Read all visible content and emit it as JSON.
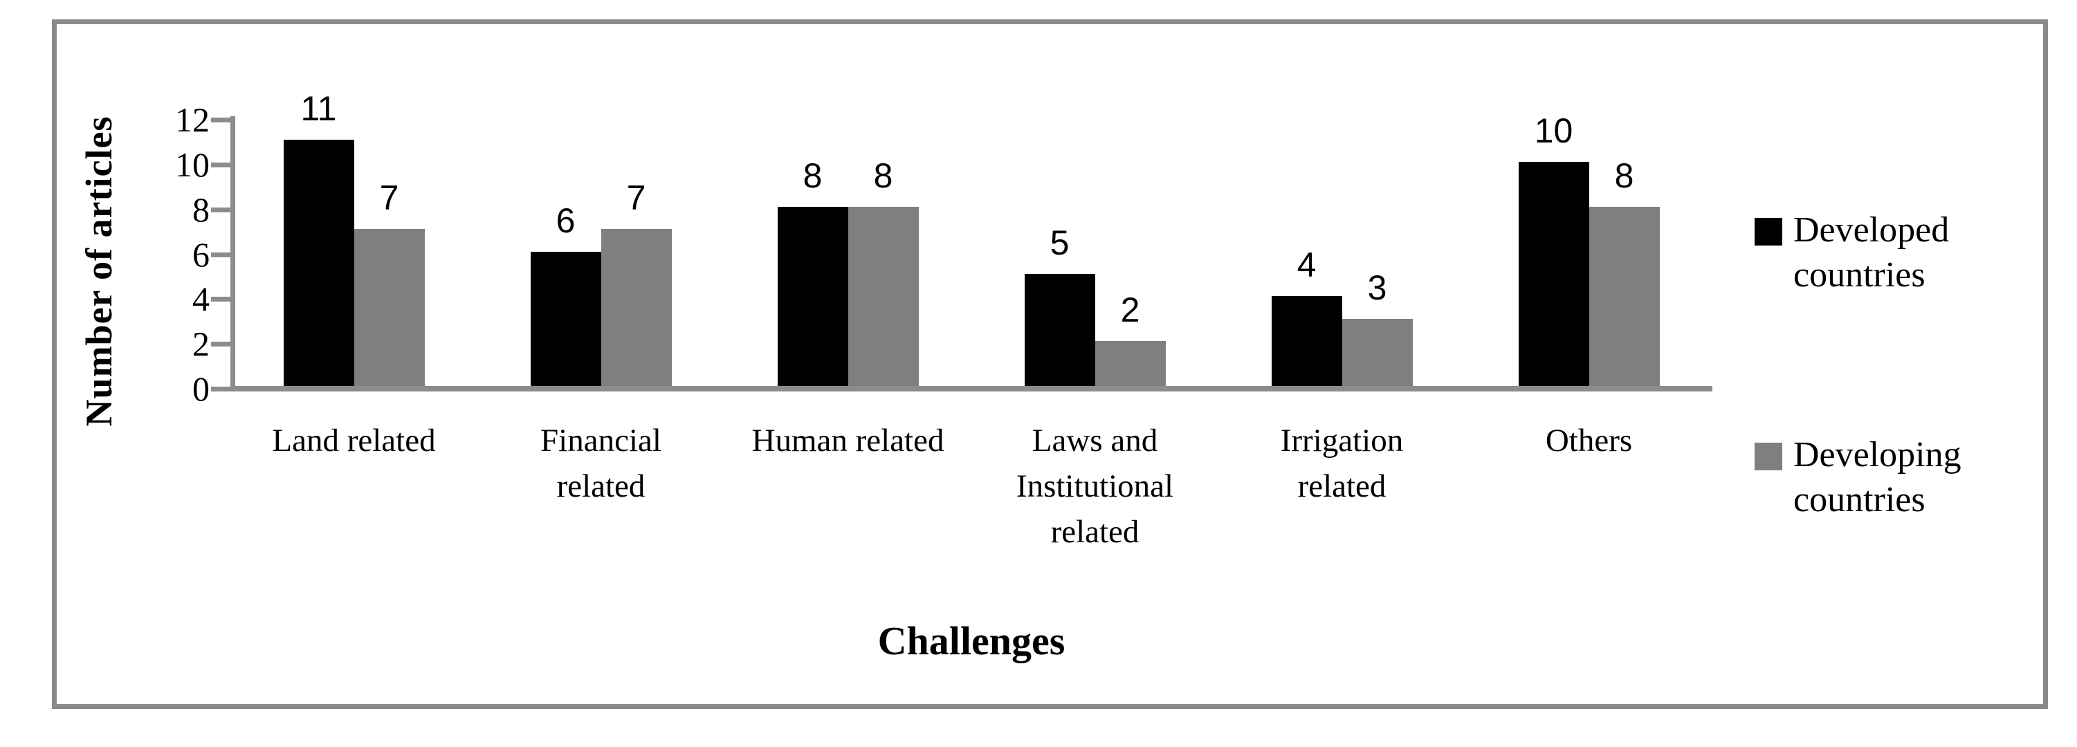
{
  "figure": {
    "description": "Grouped bar chart comparing number of articles on challenges in developed vs developing countries"
  },
  "axes": {
    "x_title": "Challenges",
    "y_title": "Number of articles"
  },
  "chart_data": {
    "type": "bar",
    "title": "",
    "xlabel": "Challenges",
    "ylabel": "Number of articles",
    "categories": [
      "Land related",
      "Financial\nrelated",
      "Human related",
      "Laws and\nInstitutional\nrelated",
      "Irrigation\nrelated",
      "Others"
    ],
    "series": [
      {
        "name": "Developed countries",
        "color": "#000000",
        "values": [
          11,
          6,
          8,
          5,
          4,
          10
        ]
      },
      {
        "name": "Developing countries",
        "color": "#7f7f7f",
        "values": [
          7,
          7,
          8,
          2,
          3,
          8
        ]
      }
    ],
    "ylim": [
      0,
      12
    ],
    "yticks": [
      0,
      2,
      4,
      6,
      8,
      10,
      12
    ],
    "grid": false,
    "data_labels": true,
    "legend_position": "right",
    "axis_color": "#8c8c8c",
    "frame_color": "#8a8a8a"
  },
  "legend": {
    "items": [
      {
        "label": "Developed\ncountries",
        "color": "#000000"
      },
      {
        "label": "Developing\ncountries",
        "color": "#7f7f7f"
      }
    ]
  }
}
